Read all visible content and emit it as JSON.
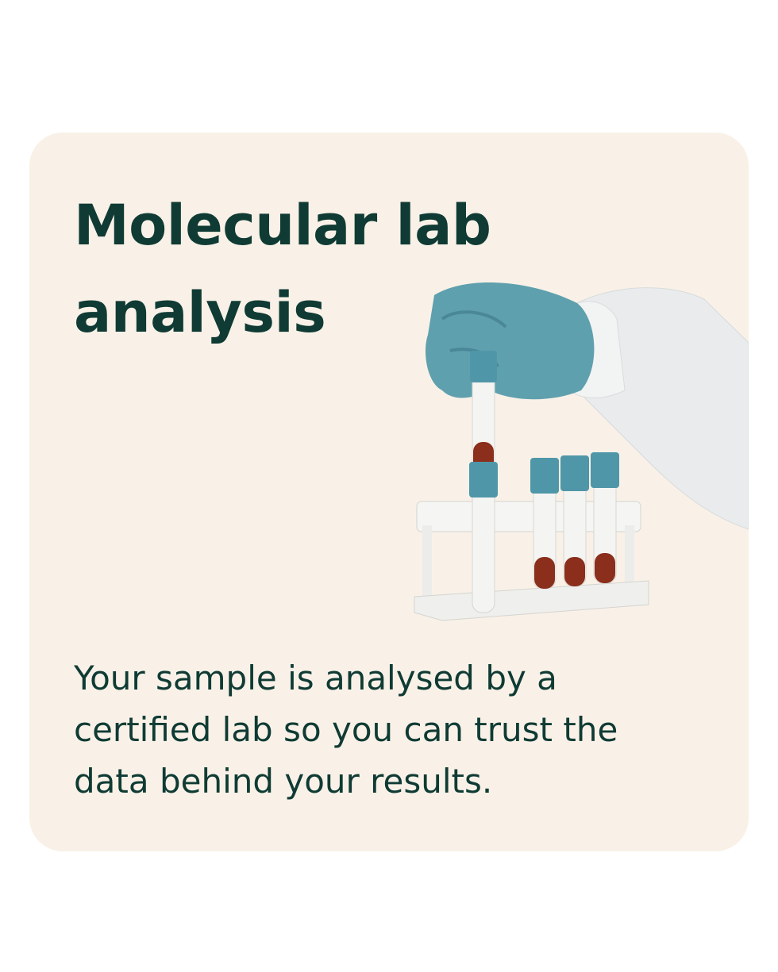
{
  "card": {
    "title": "Molecular lab analysis",
    "body": "Your sample is analysed by a certified lab so you can trust the data behind your results.",
    "image": "gloved-hand-with-test-tubes-photo"
  },
  "colors": {
    "background": "#ffffff",
    "card": "#f9f1e7",
    "text": "#0f3b34",
    "tube_cap": "#4f97a8",
    "glove": "#5fa0ae"
  }
}
